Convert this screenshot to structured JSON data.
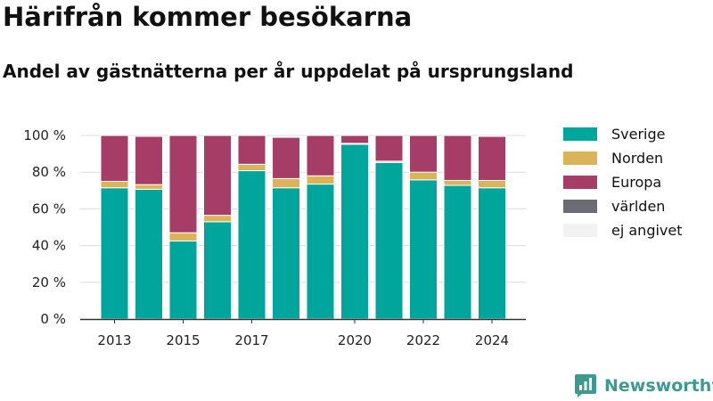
{
  "title": "Härifrån kommer besökarna",
  "subtitle": "Andel av gästnätterna per år uppdelat på ursprungsland",
  "brand": {
    "name": "Newsworthy",
    "color": "#3d9a8f"
  },
  "chart_data": {
    "type": "bar",
    "stacked": true,
    "title": "",
    "xlabel": "",
    "ylabel": "",
    "ylim": [
      0,
      100
    ],
    "y_ticks": [
      0,
      20,
      40,
      60,
      80,
      100
    ],
    "y_tick_labels": [
      "0 %",
      "20 %",
      "40 %",
      "60 %",
      "80 %",
      "100 %"
    ],
    "categories": [
      "2013",
      "2014",
      "2015",
      "2016",
      "2017",
      "2018",
      "2019",
      "2020",
      "2021",
      "2022",
      "2023",
      "2024"
    ],
    "x_tick_labels": [
      "2013",
      "2015",
      "2017",
      "2020",
      "2022",
      "2024"
    ],
    "grid": true,
    "legend_position": "right",
    "series": [
      {
        "name": "Sverige",
        "color": "#00a59b",
        "values": [
          71.5,
          70.7,
          42.5,
          53,
          80.8,
          71.5,
          73.5,
          95.2,
          85.3,
          75.8,
          72.8,
          71.5
        ]
      },
      {
        "name": "Norden",
        "color": "#dbb359",
        "values": [
          3.5,
          2.5,
          4.5,
          3.5,
          3.5,
          5,
          4.5,
          0.5,
          0.7,
          4.2,
          2.7,
          4
        ]
      },
      {
        "name": "Europa",
        "color": "#a63d67",
        "values": [
          25,
          26.3,
          53,
          43.5,
          15.7,
          22.5,
          22,
          4.3,
          14,
          20,
          24.5,
          24
        ]
      },
      {
        "name": "världen",
        "color": "#6b6b73",
        "values": [
          0,
          0,
          0,
          0,
          0,
          0.2,
          0,
          0,
          0,
          0,
          0,
          0.3
        ]
      },
      {
        "name": "ej angivet",
        "color": "#f2f2f2",
        "values": [
          0,
          0,
          0,
          0,
          0,
          0,
          0,
          0,
          0,
          0,
          0,
          0
        ]
      }
    ]
  }
}
